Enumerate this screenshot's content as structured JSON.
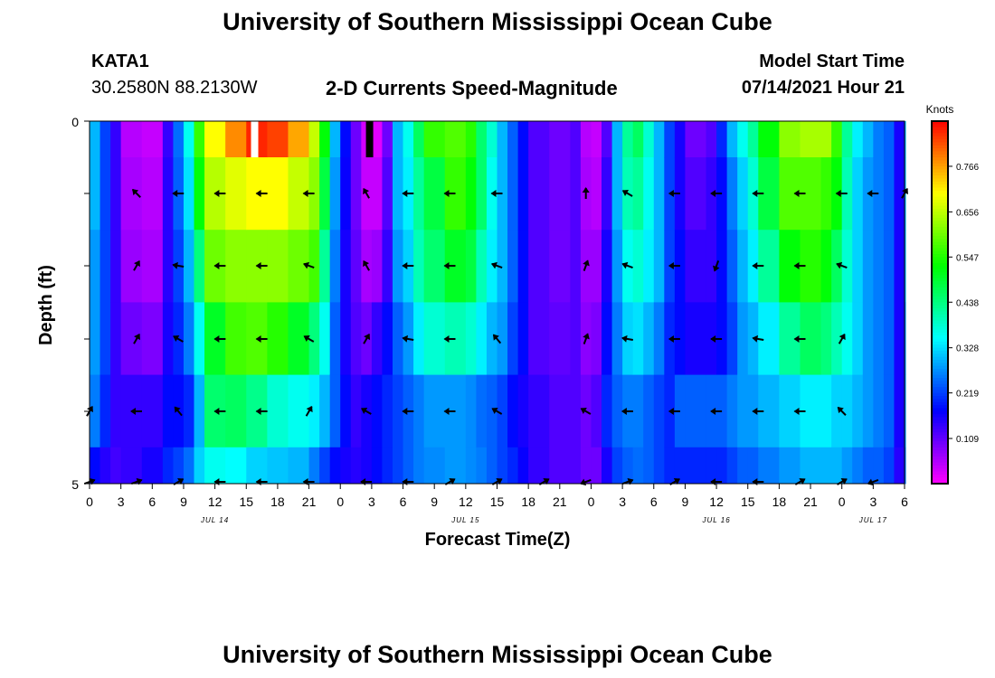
{
  "header": {
    "title": "University of Southern Mississippi Ocean Cube",
    "station": "KATA1",
    "coords": "30.2580N  88.2130W",
    "chart_title": "2-D Currents Speed-Magnitude",
    "model_label": "Model Start Time",
    "model_time": "07/14/2021 Hour 21"
  },
  "footer": {
    "title": "University of Southern Mississippi Ocean Cube"
  },
  "chart_data": {
    "type": "heatmap",
    "title": "2-D Currents Speed-Magnitude",
    "xlabel": "Forecast Time(Z)",
    "ylabel": "Depth (ft)",
    "y_tick_labels": [
      "0",
      "5"
    ],
    "ylim": [
      0,
      5
    ],
    "x_tick_labels": [
      "0",
      "3",
      "6",
      "9",
      "12",
      "15",
      "18",
      "21",
      "0",
      "3",
      "6",
      "9",
      "12",
      "15",
      "18",
      "21",
      "0",
      "3",
      "6",
      "9",
      "12",
      "15",
      "18",
      "21",
      "0",
      "3",
      "6"
    ],
    "x_hours": [
      0,
      3,
      6,
      9,
      12,
      15,
      18,
      21,
      24,
      27,
      30,
      33,
      36,
      39,
      42,
      45,
      48,
      51,
      54,
      57,
      60,
      63,
      66,
      69,
      72,
      75,
      78
    ],
    "date_labels": [
      {
        "label": "JUL 14",
        "hour": 12
      },
      {
        "label": "JUL 15",
        "hour": 36
      },
      {
        "label": "JUL 16",
        "hour": 60
      },
      {
        "label": "JUL 17",
        "hour": 75
      }
    ],
    "colorbar": {
      "unit": "Knots",
      "ticks": [
        "0.766",
        "0.656",
        "0.547",
        "0.438",
        "0.328",
        "0.219",
        "0.109"
      ],
      "tick_values": [
        0.766,
        0.656,
        0.547,
        0.438,
        0.328,
        0.219,
        0.109
      ],
      "min": 0,
      "max": 0.875
    },
    "layers_depth_ft": [
      0.5,
      1.5,
      2.5,
      3.5,
      4.5,
      5.0
    ],
    "speed_profile_knots": [
      {
        "hour": 0,
        "v": [
          0.3,
          0.3,
          0.28,
          0.28,
          0.26,
          0.18
        ]
      },
      {
        "hour": 1,
        "v": [
          0.22,
          0.22,
          0.22,
          0.22,
          0.2,
          0.15
        ]
      },
      {
        "hour": 2,
        "v": [
          0.14,
          0.14,
          0.14,
          0.14,
          0.14,
          0.13
        ]
      },
      {
        "hour": 3,
        "v": [
          0.05,
          0.06,
          0.07,
          0.1,
          0.14,
          0.14
        ]
      },
      {
        "hour": 5,
        "v": [
          0.04,
          0.05,
          0.06,
          0.09,
          0.14,
          0.16
        ]
      },
      {
        "hour": 7,
        "v": [
          0.14,
          0.15,
          0.15,
          0.16,
          0.18,
          0.2
        ]
      },
      {
        "hour": 8,
        "v": [
          0.25,
          0.24,
          0.22,
          0.2,
          0.18,
          0.22
        ]
      },
      {
        "hour": 9,
        "v": [
          0.36,
          0.33,
          0.3,
          0.26,
          0.2,
          0.25
        ]
      },
      {
        "hour": 10,
        "v": [
          0.56,
          0.52,
          0.44,
          0.36,
          0.3,
          0.32
        ]
      },
      {
        "hour": 11,
        "v": [
          0.7,
          0.65,
          0.6,
          0.5,
          0.45,
          0.36
        ]
      },
      {
        "hour": 13,
        "v": [
          0.78,
          0.68,
          0.62,
          0.57,
          0.46,
          0.35
        ]
      },
      {
        "hour": 15,
        "v": [
          0.85,
          0.7,
          0.62,
          0.58,
          0.43,
          0.32
        ]
      },
      {
        "hour": 17,
        "v": [
          0.83,
          0.7,
          0.62,
          0.55,
          0.38,
          0.31
        ]
      },
      {
        "hour": 19,
        "v": [
          0.76,
          0.66,
          0.6,
          0.5,
          0.36,
          0.3
        ]
      },
      {
        "hour": 21,
        "v": [
          0.66,
          0.62,
          0.57,
          0.44,
          0.34,
          0.26
        ]
      },
      {
        "hour": 22,
        "v": [
          0.52,
          0.48,
          0.42,
          0.36,
          0.3,
          0.22
        ]
      },
      {
        "hour": 23,
        "v": [
          0.3,
          0.28,
          0.26,
          0.24,
          0.24,
          0.18
        ]
      },
      {
        "hour": 24,
        "v": [
          0.18,
          0.17,
          0.16,
          0.16,
          0.18,
          0.16
        ]
      },
      {
        "hour": 25,
        "v": [
          0.1,
          0.1,
          0.11,
          0.12,
          0.14,
          0.15
        ]
      },
      {
        "hour": 26,
        "v": [
          0.03,
          0.04,
          0.06,
          0.1,
          0.16,
          0.16
        ]
      },
      {
        "hour": 27,
        "v": [
          0.02,
          0.04,
          0.07,
          0.14,
          0.18,
          0.18
        ]
      },
      {
        "hour": 28,
        "v": [
          0.1,
          0.12,
          0.14,
          0.18,
          0.2,
          0.2
        ]
      },
      {
        "hour": 29,
        "v": [
          0.3,
          0.3,
          0.28,
          0.24,
          0.22,
          0.22
        ]
      },
      {
        "hour": 30,
        "v": [
          0.36,
          0.34,
          0.32,
          0.28,
          0.24,
          0.24
        ]
      },
      {
        "hour": 31,
        "v": [
          0.46,
          0.42,
          0.4,
          0.34,
          0.26,
          0.26
        ]
      },
      {
        "hour": 32,
        "v": [
          0.56,
          0.48,
          0.45,
          0.38,
          0.28,
          0.27
        ]
      },
      {
        "hour": 34,
        "v": [
          0.58,
          0.56,
          0.5,
          0.4,
          0.28,
          0.28
        ]
      },
      {
        "hour": 36,
        "v": [
          0.55,
          0.52,
          0.48,
          0.38,
          0.27,
          0.27
        ]
      },
      {
        "hour": 37,
        "v": [
          0.45,
          0.45,
          0.4,
          0.34,
          0.25,
          0.26
        ]
      },
      {
        "hour": 38,
        "v": [
          0.38,
          0.36,
          0.34,
          0.3,
          0.24,
          0.24
        ]
      },
      {
        "hour": 39,
        "v": [
          0.3,
          0.3,
          0.3,
          0.28,
          0.22,
          0.22
        ]
      },
      {
        "hour": 40,
        "v": [
          0.24,
          0.24,
          0.24,
          0.22,
          0.18,
          0.2
        ]
      },
      {
        "hour": 41,
        "v": [
          0.18,
          0.18,
          0.18,
          0.18,
          0.16,
          0.17
        ]
      },
      {
        "hour": 42,
        "v": [
          0.12,
          0.12,
          0.12,
          0.12,
          0.14,
          0.14
        ]
      },
      {
        "hour": 44,
        "v": [
          0.1,
          0.1,
          0.1,
          0.11,
          0.12,
          0.12
        ]
      },
      {
        "hour": 46,
        "v": [
          0.12,
          0.12,
          0.12,
          0.12,
          0.12,
          0.12
        ]
      },
      {
        "hour": 47,
        "v": [
          0.05,
          0.06,
          0.07,
          0.08,
          0.1,
          0.1
        ]
      },
      {
        "hour": 48,
        "v": [
          0.04,
          0.05,
          0.07,
          0.09,
          0.12,
          0.1
        ]
      },
      {
        "hour": 49,
        "v": [
          0.12,
          0.14,
          0.16,
          0.18,
          0.2,
          0.16
        ]
      },
      {
        "hour": 50,
        "v": [
          0.3,
          0.3,
          0.28,
          0.26,
          0.24,
          0.22
        ]
      },
      {
        "hour": 51,
        "v": [
          0.42,
          0.4,
          0.36,
          0.32,
          0.26,
          0.24
        ]
      },
      {
        "hour": 52,
        "v": [
          0.46,
          0.42,
          0.38,
          0.33,
          0.26,
          0.25
        ]
      },
      {
        "hour": 53,
        "v": [
          0.38,
          0.36,
          0.34,
          0.3,
          0.24,
          0.24
        ]
      },
      {
        "hour": 54,
        "v": [
          0.3,
          0.3,
          0.3,
          0.26,
          0.22,
          0.22
        ]
      },
      {
        "hour": 55,
        "v": [
          0.22,
          0.22,
          0.22,
          0.2,
          0.2,
          0.2
        ]
      },
      {
        "hour": 56,
        "v": [
          0.16,
          0.16,
          0.18,
          0.18,
          0.24,
          0.2
        ]
      },
      {
        "hour": 57,
        "v": [
          0.1,
          0.12,
          0.14,
          0.16,
          0.24,
          0.2
        ]
      },
      {
        "hour": 59,
        "v": [
          0.12,
          0.14,
          0.14,
          0.16,
          0.24,
          0.2
        ]
      },
      {
        "hour": 60,
        "v": [
          0.2,
          0.18,
          0.18,
          0.18,
          0.24,
          0.2
        ]
      },
      {
        "hour": 61,
        "v": [
          0.3,
          0.26,
          0.24,
          0.22,
          0.26,
          0.22
        ]
      },
      {
        "hour": 62,
        "v": [
          0.36,
          0.32,
          0.3,
          0.28,
          0.28,
          0.24
        ]
      },
      {
        "hour": 63,
        "v": [
          0.42,
          0.38,
          0.34,
          0.3,
          0.28,
          0.24
        ]
      },
      {
        "hour": 64,
        "v": [
          0.52,
          0.48,
          0.42,
          0.34,
          0.3,
          0.26
        ]
      },
      {
        "hour": 66,
        "v": [
          0.62,
          0.58,
          0.52,
          0.42,
          0.32,
          0.28
        ]
      },
      {
        "hour": 68,
        "v": [
          0.64,
          0.58,
          0.55,
          0.46,
          0.34,
          0.3
        ]
      },
      {
        "hour": 70,
        "v": [
          0.64,
          0.56,
          0.52,
          0.44,
          0.34,
          0.3
        ]
      },
      {
        "hour": 71,
        "v": [
          0.56,
          0.52,
          0.46,
          0.4,
          0.32,
          0.3
        ]
      },
      {
        "hour": 72,
        "v": [
          0.42,
          0.4,
          0.38,
          0.36,
          0.32,
          0.28
        ]
      },
      {
        "hour": 73,
        "v": [
          0.34,
          0.32,
          0.32,
          0.32,
          0.3,
          0.26
        ]
      },
      {
        "hour": 74,
        "v": [
          0.3,
          0.28,
          0.28,
          0.28,
          0.28,
          0.24
        ]
      },
      {
        "hour": 75,
        "v": [
          0.26,
          0.26,
          0.26,
          0.26,
          0.26,
          0.24
        ]
      },
      {
        "hour": 76,
        "v": [
          0.24,
          0.24,
          0.24,
          0.24,
          0.24,
          0.22
        ]
      },
      {
        "hour": 77,
        "v": [
          0.16,
          0.16,
          0.16,
          0.16,
          0.16,
          0.15
        ]
      },
      {
        "hour": 78,
        "v": [
          0.3,
          0.3,
          0.3,
          0.28,
          0.28,
          0.26
        ]
      }
    ],
    "missing_markers": [
      {
        "hour": 15.8,
        "color": "#ffffff"
      },
      {
        "hour": 26.8,
        "color": "#000000"
      }
    ],
    "vector_hours": [
      0,
      4.5,
      8.5,
      12.5,
      16.5,
      21,
      26.5,
      30.5,
      34.5,
      39,
      43.5,
      47.5,
      51.5,
      56,
      60,
      64,
      68,
      72,
      75,
      78
    ],
    "vector_directions_deg": [
      [
        null,
        135,
        180,
        180,
        180,
        180,
        120,
        180,
        180,
        180,
        null,
        90,
        150,
        180,
        180,
        180,
        180,
        180,
        180,
        60
      ],
      [
        null,
        60,
        170,
        180,
        180,
        160,
        120,
        180,
        180,
        160,
        null,
        70,
        160,
        180,
        250,
        180,
        180,
        160,
        null,
        null
      ],
      [
        null,
        60,
        150,
        180,
        180,
        150,
        60,
        170,
        180,
        130,
        null,
        70,
        170,
        180,
        180,
        170,
        180,
        60,
        null,
        null
      ],
      [
        60,
        180,
        130,
        180,
        180,
        60,
        150,
        180,
        180,
        150,
        null,
        150,
        180,
        180,
        180,
        180,
        180,
        135,
        null,
        null
      ],
      [
        20,
        20,
        30,
        180,
        180,
        180,
        180,
        180,
        30,
        30,
        30,
        200,
        20,
        30,
        180,
        180,
        30,
        30,
        200,
        null
      ]
    ]
  }
}
